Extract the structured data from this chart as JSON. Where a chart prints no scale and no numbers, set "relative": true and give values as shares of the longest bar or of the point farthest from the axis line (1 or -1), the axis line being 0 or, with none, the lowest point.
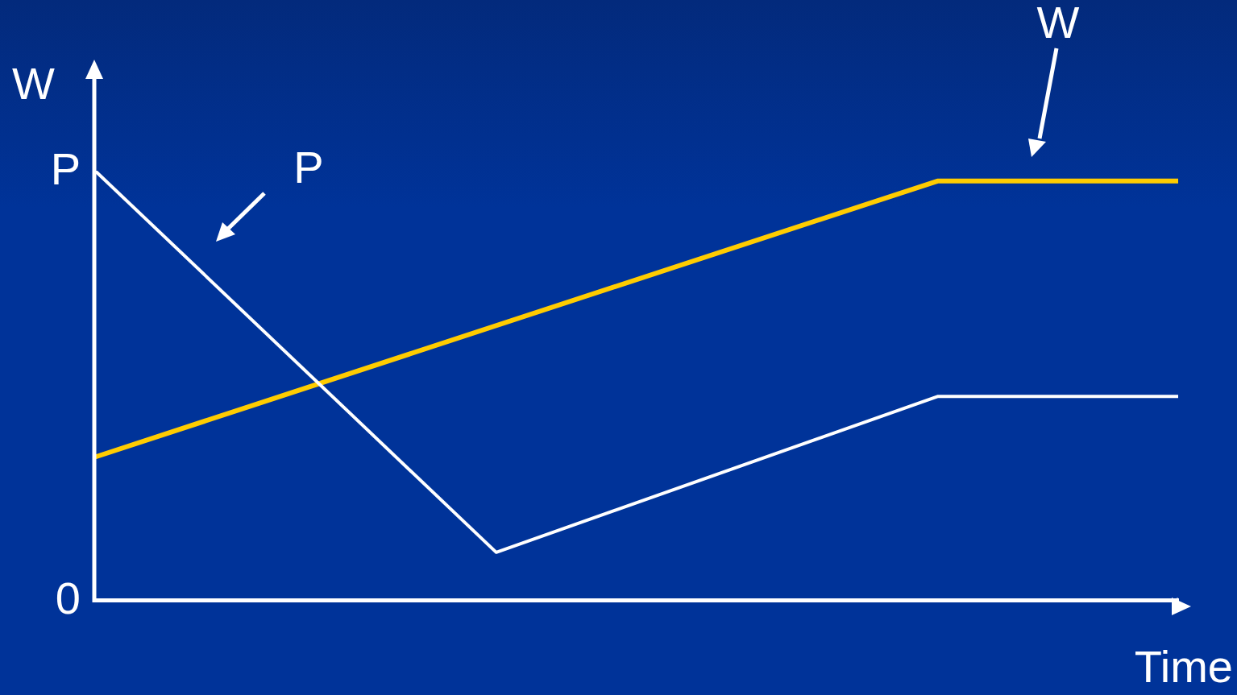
{
  "chart_data": {
    "type": "line",
    "xlabel": "Time",
    "ylabel": "W",
    "relative": true,
    "legend": false,
    "marker": "none",
    "line_style": "solid",
    "categories": [
      null,
      null,
      null,
      null,
      null,
      null,
      null,
      null,
      null,
      null,
      null,
      null,
      null,
      null,
      null,
      null,
      null,
      null,
      null,
      null,
      null,
      null,
      null,
      null,
      null,
      null,
      null,
      null
    ],
    "series": [
      {
        "name": "P",
        "color": "#ffffff",
        "values": [
          1,
          null,
          null,
          null,
          null,
          null,
          null,
          null,
          null,
          null,
          0.111,
          null,
          null,
          null,
          null,
          null,
          null,
          null,
          null,
          null,
          null,
          0.474,
          null,
          null,
          null,
          null,
          null,
          0.474
        ]
      },
      {
        "name": "W",
        "color": "#ffcc00",
        "values": [
          0.333,
          null,
          null,
          null,
          null,
          null,
          null,
          null,
          null,
          null,
          null,
          null,
          null,
          null,
          null,
          null,
          null,
          null,
          null,
          null,
          null,
          0.976,
          null,
          null,
          null,
          null,
          null,
          0.976
        ]
      }
    ],
    "annotations": [
      "P",
      "0"
    ]
  }
}
